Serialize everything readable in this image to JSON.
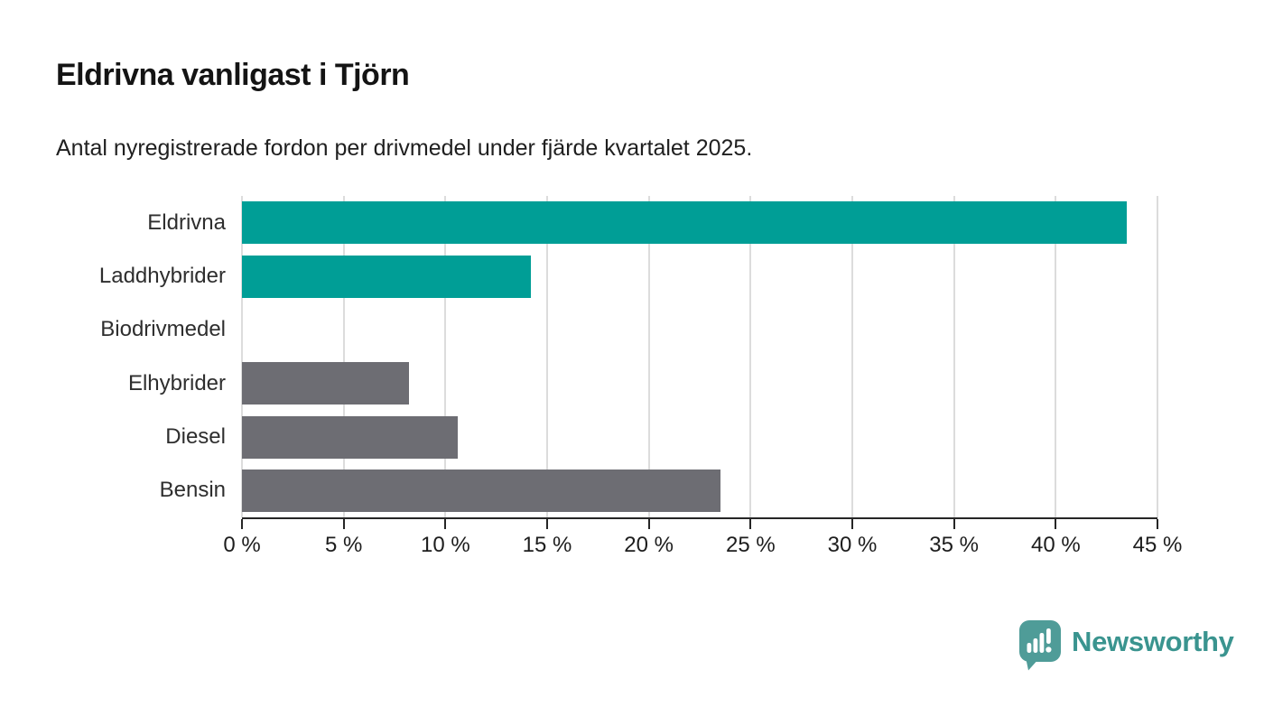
{
  "title": "Eldrivna vanligast i Tjörn",
  "subtitle": "Antal nyregistrerade fordon per drivmedel under fjärde kvartalet 2025.",
  "chart_data": {
    "type": "bar",
    "orientation": "horizontal",
    "title": "Eldrivna vanligast i Tjörn",
    "subtitle": "Antal nyregistrerade fordon per drivmedel under fjärde kvartalet 2025.",
    "categories": [
      "Eldrivna",
      "Laddhybrider",
      "Biodrivmedel",
      "Elhybrider",
      "Diesel",
      "Bensin"
    ],
    "values": [
      43.5,
      14.2,
      0,
      8.2,
      10.6,
      23.5
    ],
    "unit": "%",
    "bar_colors": [
      "#009E96",
      "#009E96",
      "#009E96",
      "#6D6D73",
      "#6D6D73",
      "#6D6D73"
    ],
    "xlim": [
      0,
      45
    ],
    "tick_values": [
      0,
      5,
      10,
      15,
      20,
      25,
      30,
      35,
      40,
      45
    ],
    "x_tick_labels": [
      "0 %",
      "5 %",
      "10 %",
      "15 %",
      "20 %",
      "25 %",
      "30 %",
      "35 %",
      "40 %",
      "45 %"
    ],
    "grid": "vertical",
    "legend": "none"
  },
  "colors": {
    "highlight_teal": "#009E96",
    "neutral_gray": "#6D6D73",
    "axis": "#262626",
    "gridline": "#dcdcdc",
    "logo_icon_teal": "#4F9C98",
    "logo_text_teal": "#3A948F"
  },
  "branding": {
    "name": "Newsworthy"
  }
}
